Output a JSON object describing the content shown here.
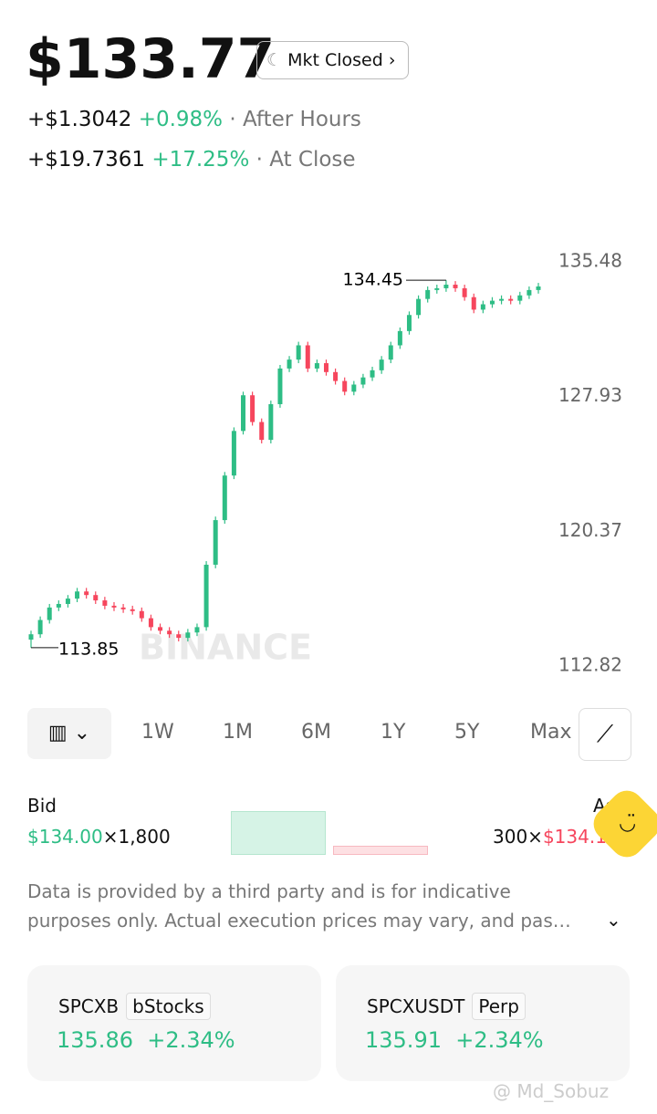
{
  "header": {
    "price": "$133.77",
    "status": "Mkt Closed",
    "rows": [
      {
        "change": "+$1.3042",
        "percent": "+0.98%",
        "label": "· After Hours"
      },
      {
        "change": "+$19.7361",
        "percent": "+17.25%",
        "label": "· At Close"
      }
    ]
  },
  "chart_data": {
    "type": "candlestick",
    "watermark": "BINANCE",
    "up_color": "#2ebd85",
    "down_color": "#f6465d",
    "ylim": [
      112.82,
      135.48
    ],
    "yticks": [
      135.48,
      127.93,
      120.37,
      112.82
    ],
    "high_marker": 134.45,
    "low_marker": 113.85,
    "open": [
      114.3,
      114.6,
      115.4,
      116.1,
      116.3,
      116.6,
      117.0,
      116.8,
      116.5,
      116.2,
      116.1,
      116.0,
      115.9,
      115.5,
      115.0,
      114.8,
      114.6,
      114.4,
      114.7,
      115.0,
      118.5,
      121.0,
      123.5,
      126.0,
      128.0,
      126.5,
      125.5,
      127.5,
      129.5,
      130.0,
      130.8,
      129.5,
      129.8,
      129.3,
      128.8,
      128.2,
      128.6,
      129.0,
      129.4,
      130.0,
      130.8,
      131.6,
      132.5,
      133.4,
      133.9,
      134.0,
      134.2,
      134.0,
      133.5,
      132.8,
      133.1,
      133.3,
      133.4,
      133.3,
      133.6,
      133.9
    ],
    "close": [
      114.6,
      115.4,
      116.1,
      116.3,
      116.6,
      117.0,
      116.8,
      116.5,
      116.2,
      116.1,
      116.0,
      115.9,
      115.5,
      115.0,
      114.8,
      114.6,
      114.4,
      114.7,
      115.0,
      118.5,
      121.0,
      123.5,
      126.0,
      128.0,
      126.5,
      125.5,
      127.5,
      129.5,
      130.0,
      130.8,
      129.5,
      129.8,
      129.3,
      128.8,
      128.2,
      128.6,
      129.0,
      129.4,
      130.0,
      130.8,
      131.6,
      132.5,
      133.4,
      133.9,
      134.0,
      134.2,
      134.0,
      133.5,
      132.8,
      133.1,
      133.3,
      133.4,
      133.3,
      133.6,
      133.9,
      134.1
    ],
    "high": [
      114.8,
      115.6,
      116.3,
      116.5,
      116.8,
      117.2,
      117.2,
      117.0,
      116.7,
      116.4,
      116.3,
      116.2,
      116.1,
      115.7,
      115.2,
      115.0,
      114.8,
      114.9,
      115.2,
      118.7,
      121.2,
      123.7,
      126.2,
      128.2,
      128.2,
      126.7,
      127.7,
      129.7,
      130.2,
      131.0,
      131.0,
      130.0,
      130.0,
      129.5,
      129.0,
      128.8,
      129.2,
      129.6,
      130.2,
      131.0,
      131.8,
      132.7,
      133.6,
      134.1,
      134.2,
      134.45,
      134.4,
      134.2,
      133.7,
      133.3,
      133.5,
      133.6,
      133.6,
      133.8,
      134.1,
      134.3
    ],
    "low": [
      113.85,
      114.4,
      115.2,
      115.9,
      116.1,
      116.4,
      116.6,
      116.3,
      116.0,
      115.9,
      115.8,
      115.7,
      115.3,
      114.8,
      114.6,
      114.4,
      114.2,
      114.2,
      114.5,
      114.8,
      118.3,
      120.8,
      123.3,
      125.8,
      126.3,
      125.3,
      125.3,
      127.3,
      129.3,
      129.8,
      129.3,
      129.3,
      129.1,
      128.6,
      128.0,
      128.0,
      128.4,
      128.8,
      129.2,
      129.8,
      130.6,
      131.4,
      132.3,
      133.2,
      133.7,
      133.8,
      133.8,
      133.3,
      132.6,
      132.6,
      132.9,
      133.1,
      133.1,
      133.1,
      133.4,
      133.7
    ]
  },
  "ranges": [
    "1W",
    "1M",
    "6M",
    "1Y",
    "5Y",
    "Max"
  ],
  "order_book": {
    "bid_label": "Bid",
    "ask_label": "Ask",
    "bid_price": "$134.00",
    "ask_price": "$134.1",
    "bid_size": {
      "value": 1800,
      "label": "×1,800"
    },
    "ask_size": {
      "value": 300,
      "label": "300×"
    }
  },
  "disclaimer": [
    "Data is provided by a third party and is for indicative",
    "purposes only. Actual execution prices may vary, and pas…"
  ],
  "cards": [
    {
      "symbol": "SPCXB",
      "tag": "bStocks",
      "price": "135.86",
      "change": "+2.34%"
    },
    {
      "symbol": "SPCXUSDT",
      "tag": "Perp",
      "price": "135.91",
      "change": "+2.34%"
    }
  ],
  "watermark": "@ Md_Sobuz"
}
